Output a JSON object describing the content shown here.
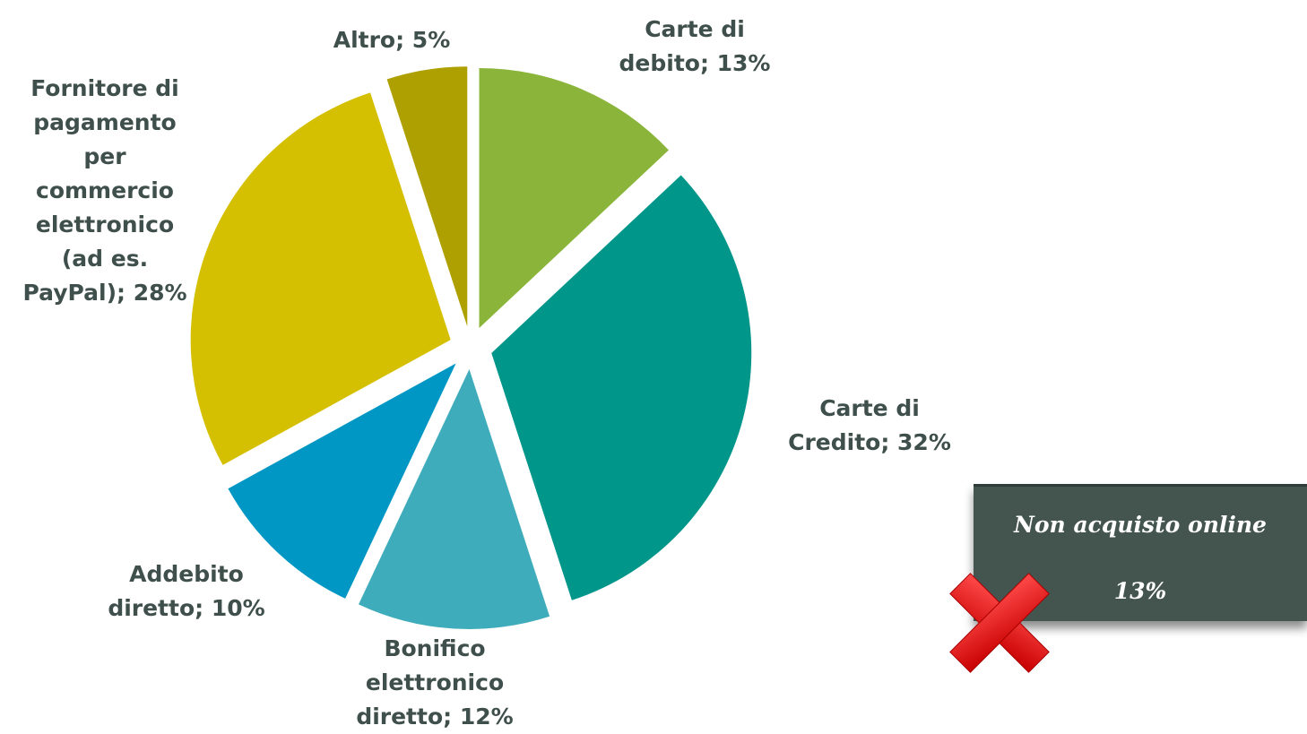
{
  "chart_data": {
    "type": "pie",
    "labels": [
      "Carte di debito; 13%",
      "Carte di Credito; 32%",
      "Bonifico elettronico diretto; 12%",
      "Addebito diretto; 10%",
      "Fornitore di pagamento per commercio elettronico (ad es. PayPal); 28%",
      "Altro; 5%"
    ],
    "values": [
      13,
      32,
      12,
      10,
      28,
      5
    ],
    "colors": [
      "#8ab43a",
      "#00968a",
      "#3eacbb",
      "#0097c4",
      "#d4c000",
      "#aea000"
    ]
  },
  "callout": {
    "title": "Non acquisto online",
    "value_label": "13%"
  }
}
